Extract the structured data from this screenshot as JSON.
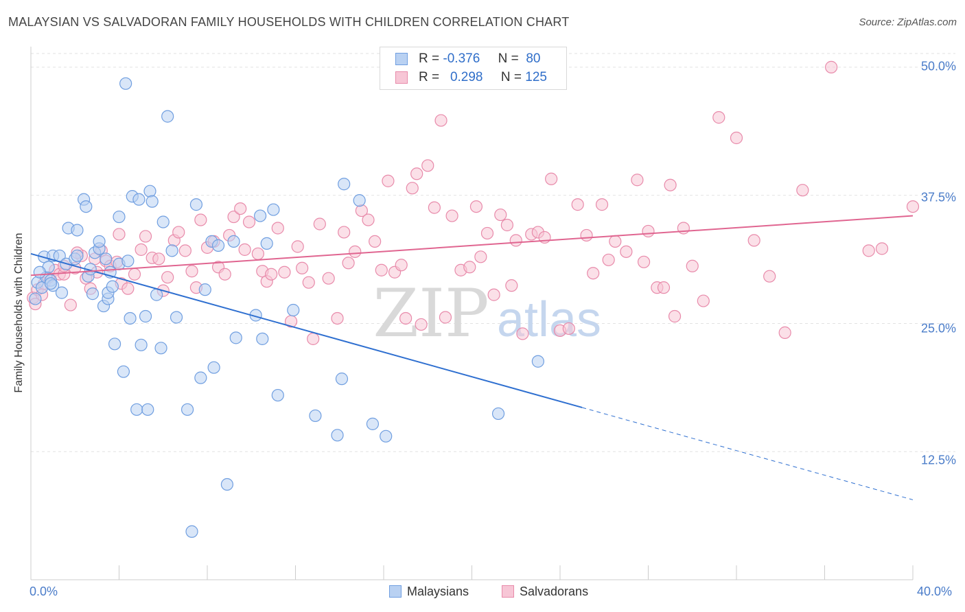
{
  "title": "MALAYSIAN VS SALVADORAN FAMILY HOUSEHOLDS WITH CHILDREN CORRELATION CHART",
  "source": "Source: ZipAtlas.com",
  "watermark": {
    "zip": "ZIP",
    "atlas": "atlas"
  },
  "colors": {
    "blue_fill": "#b9d1f2",
    "blue_stroke": "#6f9ee0",
    "blue_line": "#2e6fd0",
    "pink_fill": "#f7c6d6",
    "pink_stroke": "#e88aaa",
    "pink_line": "#e06590",
    "tick_label": "#4a7cc9",
    "grid": "#e2e2e2"
  },
  "legend_top": {
    "rows": [
      {
        "series": "Malaysians",
        "r_label": "R =",
        "r_value": "-0.376",
        "n_label": "N =",
        "n_value": "80"
      },
      {
        "series": "Salvadorans",
        "r_label": "R =",
        "r_value": "0.298",
        "n_label": "N =",
        "n_value": "125"
      }
    ]
  },
  "legend_bottom": [
    "Malaysians",
    "Salvadorans"
  ],
  "chart_data": {
    "type": "scatter",
    "title": "MALAYSIAN VS SALVADORAN FAMILY HOUSEHOLDS WITH CHILDREN CORRELATION CHART",
    "xlabel": "",
    "ylabel": "Family Households with Children",
    "xlim": [
      0,
      40
    ],
    "ylim": [
      0,
      52
    ],
    "x_tick_labels": [
      "0.0%",
      "40.0%"
    ],
    "y_ticks": [
      12.5,
      25.0,
      37.5,
      50.0
    ],
    "y_tick_labels": [
      "12.5%",
      "25.0%",
      "37.5%",
      "50.0%"
    ],
    "grid": true,
    "series": [
      {
        "name": "Malaysians",
        "trend": {
          "x_start": 0,
          "y_start": 31.8,
          "x_solid_end": 25,
          "y_solid_end": 16.8,
          "x_end": 40,
          "y_end": 7.8
        },
        "points": [
          [
            0.3,
            29.0
          ],
          [
            0.5,
            28.5
          ],
          [
            0.6,
            31.5
          ],
          [
            0.7,
            29.5
          ],
          [
            0.8,
            30.5
          ],
          [
            0.9,
            29.2
          ],
          [
            1.0,
            28.7
          ],
          [
            1.0,
            31.6
          ],
          [
            1.3,
            31.6
          ],
          [
            1.4,
            28.0
          ],
          [
            1.6,
            30.8
          ],
          [
            1.7,
            34.3
          ],
          [
            2.0,
            31.3
          ],
          [
            2.1,
            34.1
          ],
          [
            2.1,
            31.6
          ],
          [
            2.4,
            37.1
          ],
          [
            2.5,
            36.4
          ],
          [
            2.6,
            29.6
          ],
          [
            2.7,
            30.3
          ],
          [
            2.8,
            27.9
          ],
          [
            2.9,
            31.9
          ],
          [
            3.1,
            32.3
          ],
          [
            3.1,
            33.0
          ],
          [
            3.3,
            26.7
          ],
          [
            3.4,
            31.3
          ],
          [
            3.5,
            27.4
          ],
          [
            3.5,
            28.0
          ],
          [
            3.6,
            30.0
          ],
          [
            3.7,
            28.6
          ],
          [
            3.8,
            23.0
          ],
          [
            4.0,
            30.8
          ],
          [
            4.0,
            35.4
          ],
          [
            4.2,
            20.3
          ],
          [
            4.3,
            48.4
          ],
          [
            4.4,
            31.1
          ],
          [
            4.5,
            25.5
          ],
          [
            4.6,
            37.4
          ],
          [
            4.8,
            16.6
          ],
          [
            4.9,
            37.1
          ],
          [
            5.0,
            22.9
          ],
          [
            5.2,
            25.7
          ],
          [
            5.3,
            16.6
          ],
          [
            5.4,
            37.9
          ],
          [
            5.5,
            36.9
          ],
          [
            5.7,
            27.8
          ],
          [
            5.9,
            22.6
          ],
          [
            6.0,
            34.9
          ],
          [
            6.2,
            45.2
          ],
          [
            6.4,
            32.1
          ],
          [
            6.6,
            25.6
          ],
          [
            7.1,
            16.6
          ],
          [
            7.3,
            4.7
          ],
          [
            7.5,
            36.6
          ],
          [
            7.7,
            19.7
          ],
          [
            7.9,
            28.3
          ],
          [
            8.2,
            33.0
          ],
          [
            8.3,
            20.7
          ],
          [
            8.5,
            32.6
          ],
          [
            8.9,
            9.3
          ],
          [
            9.2,
            33.0
          ],
          [
            9.3,
            23.6
          ],
          [
            10.2,
            25.8
          ],
          [
            10.4,
            35.5
          ],
          [
            10.5,
            23.5
          ],
          [
            10.7,
            32.8
          ],
          [
            11.0,
            36.1
          ],
          [
            11.2,
            18.0
          ],
          [
            11.9,
            26.3
          ],
          [
            12.9,
            16.0
          ],
          [
            13.9,
            14.1
          ],
          [
            14.1,
            19.6
          ],
          [
            14.2,
            38.6
          ],
          [
            14.9,
            37.0
          ],
          [
            15.5,
            15.2
          ],
          [
            16.1,
            14.0
          ],
          [
            21.2,
            16.2
          ],
          [
            23.0,
            21.3
          ],
          [
            0.2,
            27.4
          ],
          [
            0.4,
            30.0
          ],
          [
            0.9,
            28.9
          ]
        ]
      },
      {
        "name": "Salvadorans",
        "trend": {
          "x_start": 0,
          "y_start": 29.7,
          "x_end": 40,
          "y_end": 35.5
        },
        "points": [
          [
            0.1,
            27.5
          ],
          [
            0.2,
            26.9
          ],
          [
            0.3,
            28.3
          ],
          [
            0.5,
            27.8
          ],
          [
            0.8,
            29.5
          ],
          [
            1.1,
            30.2
          ],
          [
            1.3,
            29.8
          ],
          [
            1.5,
            29.8
          ],
          [
            1.8,
            26.8
          ],
          [
            2.0,
            30.4
          ],
          [
            2.3,
            31.6
          ],
          [
            2.5,
            29.4
          ],
          [
            2.7,
            28.4
          ],
          [
            3.0,
            30.0
          ],
          [
            3.2,
            32.1
          ],
          [
            3.4,
            31.1
          ],
          [
            3.6,
            30.6
          ],
          [
            3.9,
            31.0
          ],
          [
            4.0,
            33.7
          ],
          [
            4.1,
            28.9
          ],
          [
            4.4,
            28.4
          ],
          [
            4.7,
            29.8
          ],
          [
            5.0,
            32.2
          ],
          [
            5.2,
            33.5
          ],
          [
            5.5,
            31.4
          ],
          [
            5.8,
            31.3
          ],
          [
            6.0,
            28.2
          ],
          [
            6.2,
            29.5
          ],
          [
            6.5,
            33.1
          ],
          [
            6.7,
            33.9
          ],
          [
            7.0,
            32.1
          ],
          [
            7.3,
            30.1
          ],
          [
            7.5,
            28.5
          ],
          [
            7.7,
            35.1
          ],
          [
            8.0,
            32.4
          ],
          [
            8.3,
            33.0
          ],
          [
            8.5,
            30.5
          ],
          [
            8.8,
            29.8
          ],
          [
            9.0,
            33.6
          ],
          [
            9.2,
            35.4
          ],
          [
            9.5,
            36.2
          ],
          [
            9.7,
            32.2
          ],
          [
            9.9,
            34.9
          ],
          [
            10.3,
            31.8
          ],
          [
            10.5,
            30.1
          ],
          [
            10.7,
            29.1
          ],
          [
            10.9,
            29.8
          ],
          [
            11.2,
            34.3
          ],
          [
            11.5,
            30.0
          ],
          [
            11.8,
            25.2
          ],
          [
            12.1,
            32.5
          ],
          [
            12.3,
            30.4
          ],
          [
            12.6,
            29.0
          ],
          [
            12.8,
            23.5
          ],
          [
            13.1,
            34.7
          ],
          [
            13.5,
            29.4
          ],
          [
            13.9,
            25.5
          ],
          [
            14.2,
            33.9
          ],
          [
            14.4,
            30.9
          ],
          [
            14.7,
            32.0
          ],
          [
            15.0,
            36.0
          ],
          [
            15.3,
            35.1
          ],
          [
            15.6,
            33.0
          ],
          [
            15.9,
            30.2
          ],
          [
            16.2,
            38.9
          ],
          [
            16.5,
            30.0
          ],
          [
            16.8,
            30.7
          ],
          [
            17.0,
            25.5
          ],
          [
            17.3,
            38.2
          ],
          [
            17.5,
            39.6
          ],
          [
            17.7,
            24.9
          ],
          [
            18.0,
            40.4
          ],
          [
            18.3,
            36.3
          ],
          [
            18.6,
            44.8
          ],
          [
            18.8,
            25.6
          ],
          [
            19.1,
            35.5
          ],
          [
            19.5,
            30.2
          ],
          [
            19.9,
            30.5
          ],
          [
            20.2,
            36.4
          ],
          [
            20.4,
            31.5
          ],
          [
            20.7,
            33.8
          ],
          [
            21.0,
            27.8
          ],
          [
            21.3,
            35.6
          ],
          [
            21.6,
            34.6
          ],
          [
            21.8,
            28.7
          ],
          [
            22.0,
            33.1
          ],
          [
            22.3,
            24.0
          ],
          [
            22.7,
            33.7
          ],
          [
            23.0,
            33.9
          ],
          [
            23.3,
            33.4
          ],
          [
            23.6,
            39.1
          ],
          [
            24.0,
            24.3
          ],
          [
            24.4,
            24.5
          ],
          [
            24.8,
            36.6
          ],
          [
            25.2,
            33.6
          ],
          [
            25.5,
            29.9
          ],
          [
            25.9,
            36.6
          ],
          [
            26.2,
            31.2
          ],
          [
            26.5,
            33.0
          ],
          [
            27.0,
            32.0
          ],
          [
            27.5,
            39.0
          ],
          [
            27.8,
            31.0
          ],
          [
            28.0,
            34.0
          ],
          [
            28.4,
            28.5
          ],
          [
            28.7,
            28.5
          ],
          [
            29.0,
            38.5
          ],
          [
            29.2,
            25.7
          ],
          [
            29.6,
            34.3
          ],
          [
            30.0,
            30.6
          ],
          [
            30.5,
            27.2
          ],
          [
            31.2,
            45.1
          ],
          [
            32.0,
            43.1
          ],
          [
            32.8,
            33.1
          ],
          [
            33.5,
            29.6
          ],
          [
            34.2,
            24.1
          ],
          [
            35.0,
            38.0
          ],
          [
            36.3,
            50.0
          ],
          [
            38.0,
            32.1
          ],
          [
            38.6,
            32.3
          ],
          [
            40.0,
            36.4
          ],
          [
            0.6,
            28.9
          ],
          [
            1.5,
            30.6
          ],
          [
            2.1,
            31.9
          ],
          [
            2.9,
            31.3
          ]
        ]
      }
    ]
  }
}
